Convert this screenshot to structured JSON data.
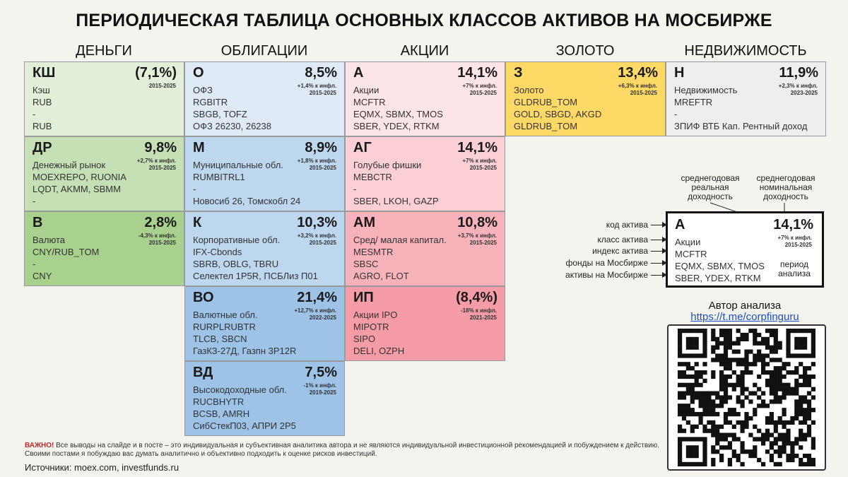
{
  "title": "ПЕРИОДИЧЕСКАЯ ТАБЛИЦА ОСНОВНЫХ КЛАССОВ АКТИВОВ НА МОСБИРЖЕ",
  "columns": [
    "ДЕНЬГИ",
    "ОБЛИГАЦИИ",
    "АКЦИИ",
    "ЗОЛОТО",
    "НЕДВИЖИМОСТЬ"
  ],
  "cells": {
    "ksh": {
      "code": "КШ",
      "ret": "(7,1%)",
      "infl": "",
      "period": "2015-2025",
      "lines": [
        "Кэш",
        "RUB",
        "-",
        "RUB"
      ]
    },
    "dr": {
      "code": "ДР",
      "ret": "9,8%",
      "infl": "+2,7% к инфл.",
      "period": "2015-2025",
      "lines": [
        "Денежный рынок",
        "MOEXREPO, RUONIA",
        "LQDT, AKMM, SBMM",
        "-"
      ]
    },
    "v": {
      "code": "В",
      "ret": "2,8%",
      "infl": "-4,3% к инфл.",
      "period": "2015-2025",
      "lines": [
        "Валюта",
        "CNY/RUB_TOM",
        "-",
        "CNY"
      ]
    },
    "o": {
      "code": "О",
      "ret": "8,5%",
      "infl": "+1,4% к инфл.",
      "period": "2015-2025",
      "lines": [
        "ОФЗ",
        "RGBITR",
        "SBGB, TOFZ",
        "ОФЗ 26230, 26238"
      ]
    },
    "m": {
      "code": "М",
      "ret": "8,9%",
      "infl": "+1,8% к инфл.",
      "period": "2015-2025",
      "lines": [
        "Муниципальные обл.",
        "RUMBITRL1",
        "-",
        "Новосиб 26, Томскобл 24"
      ]
    },
    "k": {
      "code": "К",
      "ret": "10,3%",
      "infl": "+3,2% к инфл.",
      "period": "2015-2025",
      "lines": [
        "Корпоративные обл.",
        "IFX-Cbonds",
        "SBRB, OBLG, TBRU",
        "Селектел 1Р5R, ПСБЛиз П01"
      ]
    },
    "vo": {
      "code": "ВО",
      "ret": "21,4%",
      "infl": "+12,7% к инфл.",
      "period": "2022-2025",
      "lines": [
        "Валютные обл.",
        "RURPLRUBTR",
        "TLCB, SBCN",
        "ГазКЗ-27Д, Газпн 3Р12R"
      ]
    },
    "vd": {
      "code": "ВД",
      "ret": "7,5%",
      "infl": "-1% к инфл.",
      "period": "2019-2025",
      "lines": [
        "Высокодоходные обл.",
        "RUCBHYTR",
        "BCSB, AMRH",
        "СибСтекП03, АПРИ 2Р5"
      ]
    },
    "a": {
      "code": "А",
      "ret": "14,1%",
      "infl": "+7% к инфл.",
      "period": "2015-2025",
      "lines": [
        "Акции",
        "MCFTR",
        "EQMX, SBMX, TMOS",
        "SBER, YDEX, RTKM"
      ]
    },
    "ag": {
      "code": "АГ",
      "ret": "14,1%",
      "infl": "+7% к инфл.",
      "period": "2015-2025",
      "lines": [
        "Голубые фишки",
        "MEBCTR",
        "-",
        "SBER, LKOH, GAZP"
      ]
    },
    "am": {
      "code": "АМ",
      "ret": "10,8%",
      "infl": "+3,7% к инфл.",
      "period": "2015-2025",
      "lines": [
        "Сред/ малая капитал.",
        "MESMTR",
        "SBSC",
        "AGRO, FLOT"
      ]
    },
    "ip": {
      "code": "ИП",
      "ret": "(8,4%)",
      "infl": "-18% к инфл.",
      "period": "2021-2025",
      "lines": [
        "Акции IPO",
        "MIPOTR",
        "SIPO",
        "DELI, OZPH"
      ]
    },
    "z": {
      "code": "З",
      "ret": "13,4%",
      "infl": "+6,3% к инфл.",
      "period": "2015-2025",
      "lines": [
        "Золото",
        "GLDRUB_TOM",
        "GOLD, SBGD, AKGD",
        "GLDRUB_TOM"
      ]
    },
    "n": {
      "code": "Н",
      "ret": "11,9%",
      "infl": "+2,3% к инфл.",
      "period": "2023-2025",
      "lines": [
        "Недвижимость",
        "MREFTR",
        "-",
        "ЗПИФ ВТБ Кап. Рентный доход"
      ]
    }
  },
  "legend": {
    "head_real": "среднегодовая реальная доходность",
    "head_nominal": "среднегодовая номинальная доходность",
    "labels": [
      "код актива",
      "класс актива",
      "индекс актива",
      "фонды на Мосбирже",
      "активы на Мосбирже"
    ],
    "example": {
      "code": "А",
      "ret": "14,1%",
      "infl": "+7% к инфл.",
      "period": "2015-2025",
      "lines": [
        "Акции",
        "MCFTR",
        "EQMX, SBMX, TMOS",
        "SBER, YDEX, RTKM"
      ]
    },
    "period_label": "период анализа"
  },
  "author": {
    "label": "Автор анализа",
    "link": "https://t.me/corpfinguru"
  },
  "disclaimer": {
    "important": "ВАЖНО!",
    "text": "Все выводы на слайде и в посте – это индивидуальная и субъективная аналитика автора и не являются индивидуальной инвестиционной рекомендацией и побуждением к действию. Своими постами я побуждаю вас думать аналитично и объективно подходить к оценке рисков инвестиций."
  },
  "sources": "Источники: moex.com, investfunds.ru"
}
